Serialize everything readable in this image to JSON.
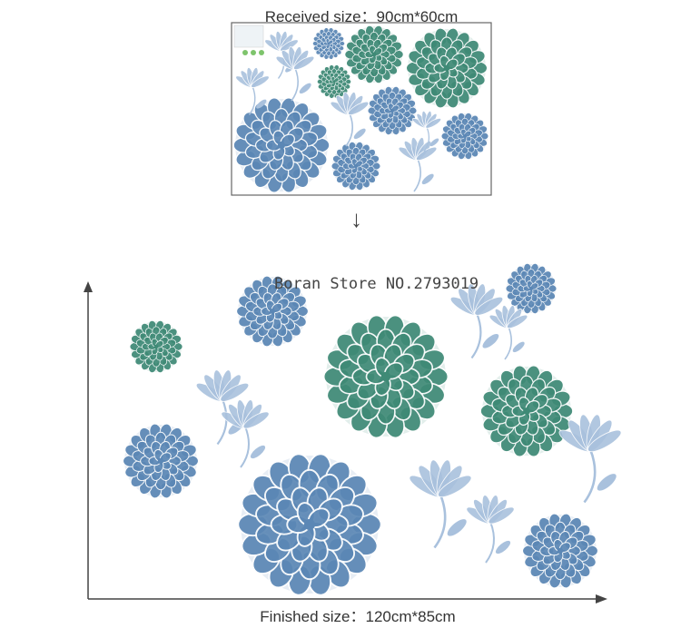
{
  "received_label": "Received size：90cm*60cm",
  "arrow": "↓",
  "watermark": "Boran Store NO.2793019",
  "finished_label": "Finished size：120cm*85cm",
  "colors": {
    "blue_flower": "#5b87b5",
    "green_flower": "#3f8a76",
    "lily": "#a9c1dd",
    "axis": "#444444",
    "frame": "#666666"
  }
}
